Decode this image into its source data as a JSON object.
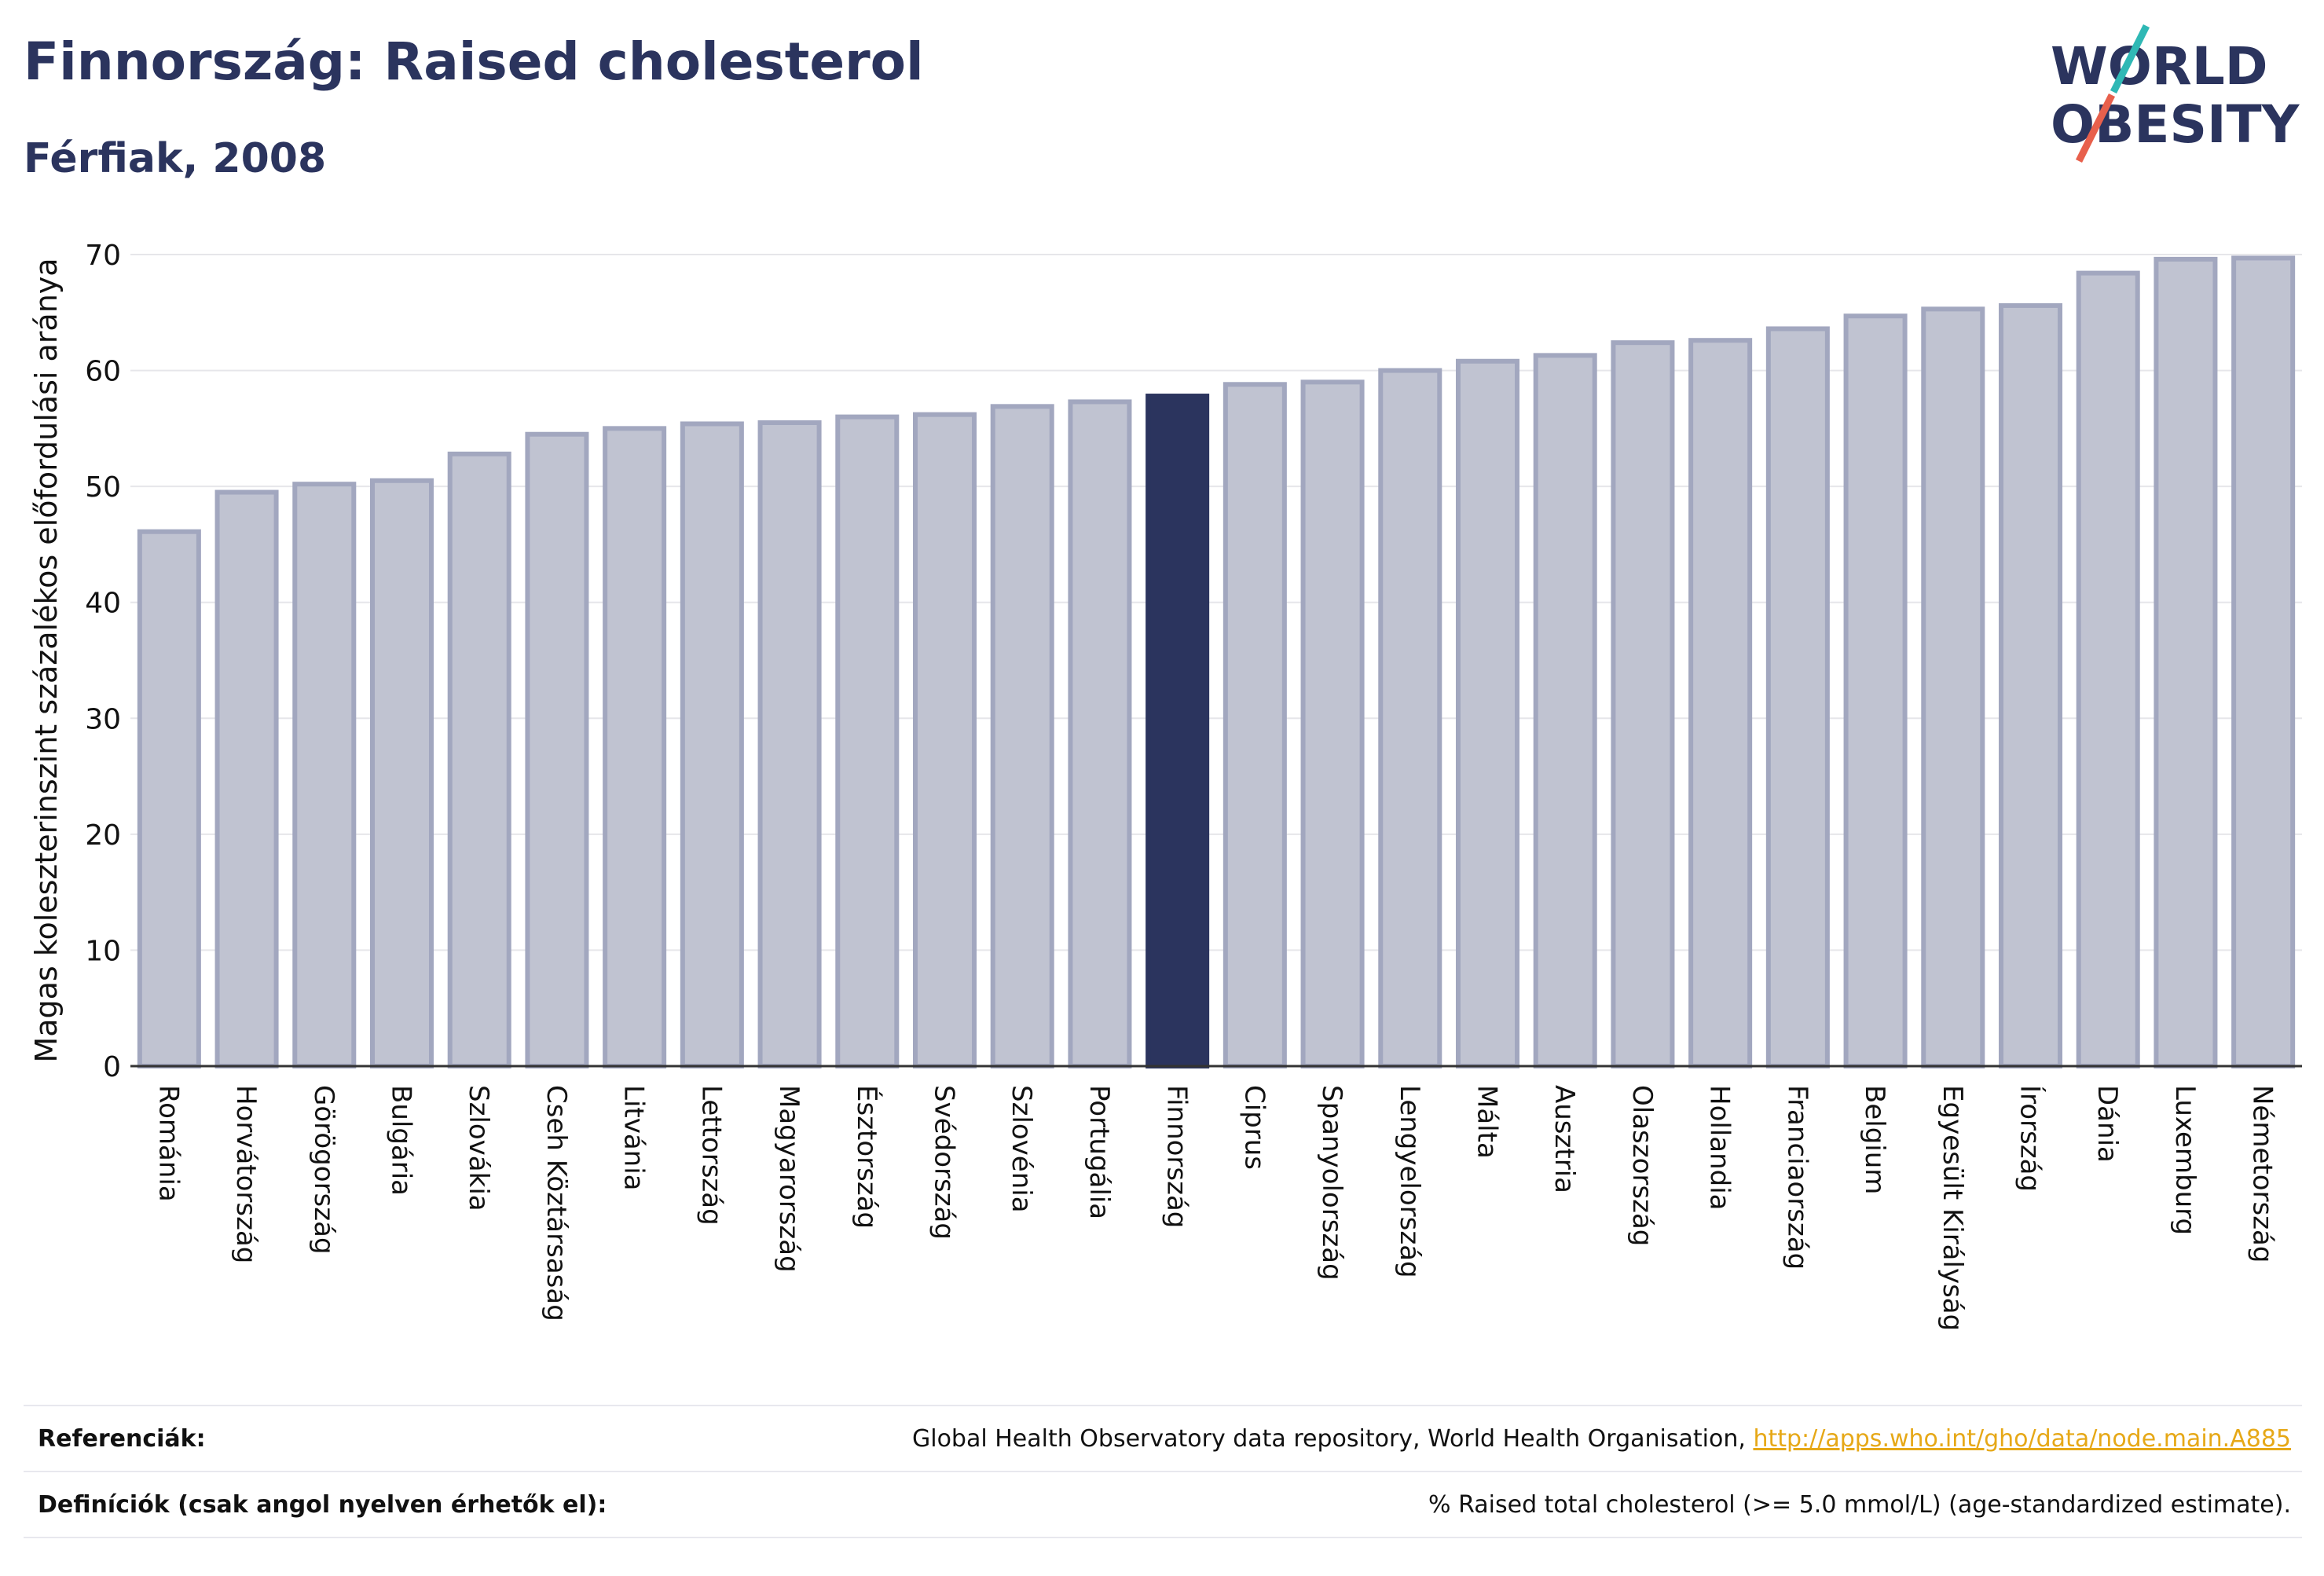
{
  "header": {
    "title": "Finnország: Raised cholesterol",
    "subtitle": "Férfiak, 2008"
  },
  "logo": {
    "line1": "WORLD",
    "line2": "OBESITY",
    "colors": {
      "text": "#2b345e",
      "slash_top": "#2fb8b5",
      "slash_bottom": "#e8604c"
    }
  },
  "colors": {
    "bar_fill": "#c0c3d1",
    "bar_stroke": "#a2a7bf",
    "highlight": "#2b345e",
    "axis": "#333333",
    "grid": "#e6e6ea"
  },
  "chart_data": {
    "type": "bar",
    "title": "Finnország: Raised cholesterol",
    "subtitle": "Férfiak, 2008",
    "xlabel": "",
    "ylabel": "Magas koleszterinszint százalékos előfordulási aránya",
    "ylim": [
      0,
      70
    ],
    "yticks": [
      0,
      10,
      20,
      30,
      40,
      50,
      60,
      70
    ],
    "grid": true,
    "highlight": "Finnország",
    "categories": [
      "Románia",
      "Horvátország",
      "Görögország",
      "Bulgária",
      "Szlovákia",
      "Cseh Köztársaság",
      "Litvánia",
      "Lettország",
      "Magyarország",
      "Észtország",
      "Svédország",
      "Szlovénia",
      "Portugália",
      "Finnország",
      "Ciprus",
      "Spanyolország",
      "Lengyelország",
      "Málta",
      "Ausztria",
      "Olaszország",
      "Hollandia",
      "Franciaország",
      "Belgium",
      "Egyesült Királyság",
      "Írország",
      "Dánia",
      "Luxemburg",
      "Németország"
    ],
    "values": [
      46.1,
      49.5,
      50.2,
      50.5,
      52.8,
      54.5,
      55.0,
      55.4,
      55.5,
      56.0,
      56.2,
      56.9,
      57.3,
      57.8,
      58.8,
      59.0,
      60.0,
      60.8,
      61.3,
      62.4,
      62.6,
      63.6,
      64.7,
      65.3,
      65.6,
      68.4,
      69.6,
      69.7
    ]
  },
  "footer": {
    "ref_label": "Referenciák:",
    "ref_text": "Global Health Observatory data repository, World Health Organisation,",
    "ref_link": "http://apps.who.int/gho/data/node.main.A885",
    "def_label": "Definíciók (csak angol nyelven érhetők el):",
    "def_text": "% Raised total cholesterol (>= 5.0 mmol/L) (age-standardized estimate)."
  }
}
